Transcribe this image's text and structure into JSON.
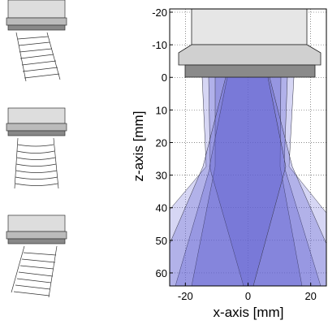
{
  "axes": {
    "x_label": "x-axis [mm]",
    "y_label": "z-axis [mm]",
    "xlim": [
      -25,
      25
    ],
    "xticks": [
      -20,
      0,
      20
    ],
    "ylim": [
      -21,
      64
    ],
    "yticks": [
      -20,
      -10,
      0,
      10,
      20,
      30,
      40,
      50,
      60
    ],
    "grid": true,
    "y_reversed": true
  }
}
